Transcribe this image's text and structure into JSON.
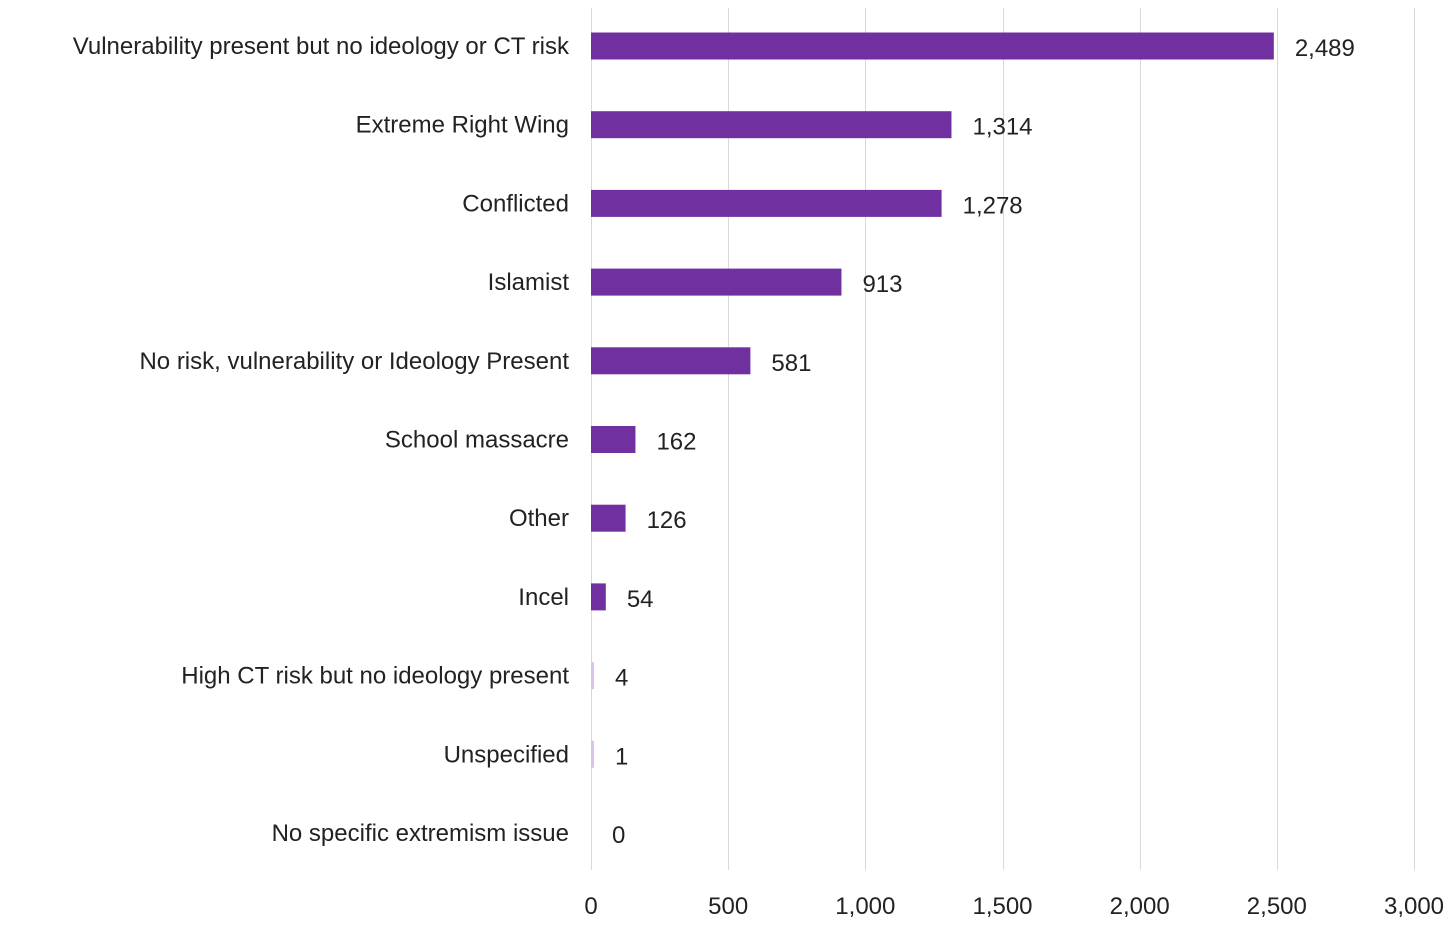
{
  "chart_data": {
    "type": "bar",
    "orientation": "horizontal",
    "title": "",
    "xlabel": "",
    "ylabel": "",
    "categories": [
      "Vulnerability present but no ideology or CT risk",
      "Extreme Right Wing",
      "Conflicted",
      "Islamist",
      "No risk, vulnerability or Ideology Present",
      "School massacre",
      "Other",
      "Incel",
      "High CT risk but no ideology present",
      "Unspecified",
      "No specific extremism issue"
    ],
    "values": [
      2489,
      1314,
      1278,
      913,
      581,
      162,
      126,
      54,
      4,
      1,
      0
    ],
    "value_labels": [
      "2,489",
      "1,314",
      "1,278",
      "913",
      "581",
      "162",
      "126",
      "54",
      "4",
      "1",
      "0"
    ],
    "xlim": [
      0,
      3000
    ],
    "ticks": [
      0,
      500,
      1000,
      1500,
      2000,
      2500,
      3000
    ],
    "tick_labels": [
      "0",
      "500",
      "1,000",
      "1,500",
      "2,000",
      "2,500",
      "3,000"
    ],
    "grid": true,
    "legend": "none",
    "colors": {
      "bar": "#7030a0",
      "bar_faint": "#d8c4e8",
      "grid": "#d9d9d9",
      "text": "#222222"
    }
  }
}
